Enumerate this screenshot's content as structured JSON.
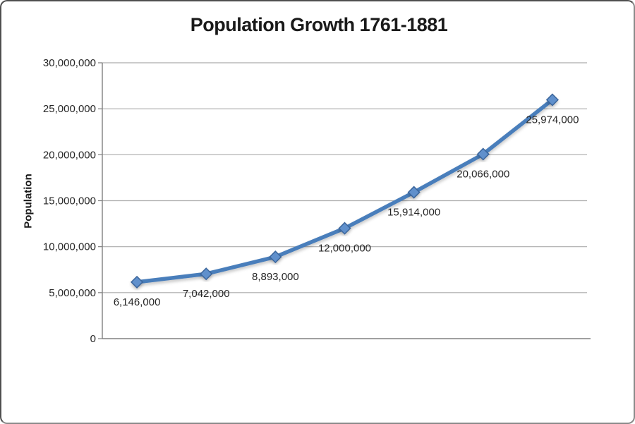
{
  "chart_data": {
    "type": "line",
    "title": "Population Growth 1761-1881",
    "xlabel": "",
    "ylabel": "Population",
    "series": [
      {
        "name": "Population",
        "values": [
          6146000,
          7042000,
          8893000,
          12000000,
          15914000,
          20066000,
          25974000
        ],
        "point_labels": [
          "6,146,000",
          "7,042,000",
          "8,893,000",
          "12,000,000",
          "15,914,000",
          "20,066,000",
          "25,974,000"
        ]
      }
    ],
    "x_tick_labels_visible": false,
    "ylim": [
      0,
      30000000
    ],
    "yticks": [
      0,
      5000000,
      10000000,
      15000000,
      20000000,
      25000000,
      30000000
    ],
    "ytick_labels": [
      "0",
      "5,000,000",
      "10,000,000",
      "15,000,000",
      "20,000,000",
      "25,000,000",
      "30,000,000"
    ],
    "grid": true,
    "legend": false,
    "colors": {
      "line": "#4A7EBB",
      "marker_fill": "#6090CC",
      "marker_stroke": "#3A659B",
      "gridline": "#ACACAC",
      "axis": "#808080",
      "text": "#262626"
    }
  }
}
